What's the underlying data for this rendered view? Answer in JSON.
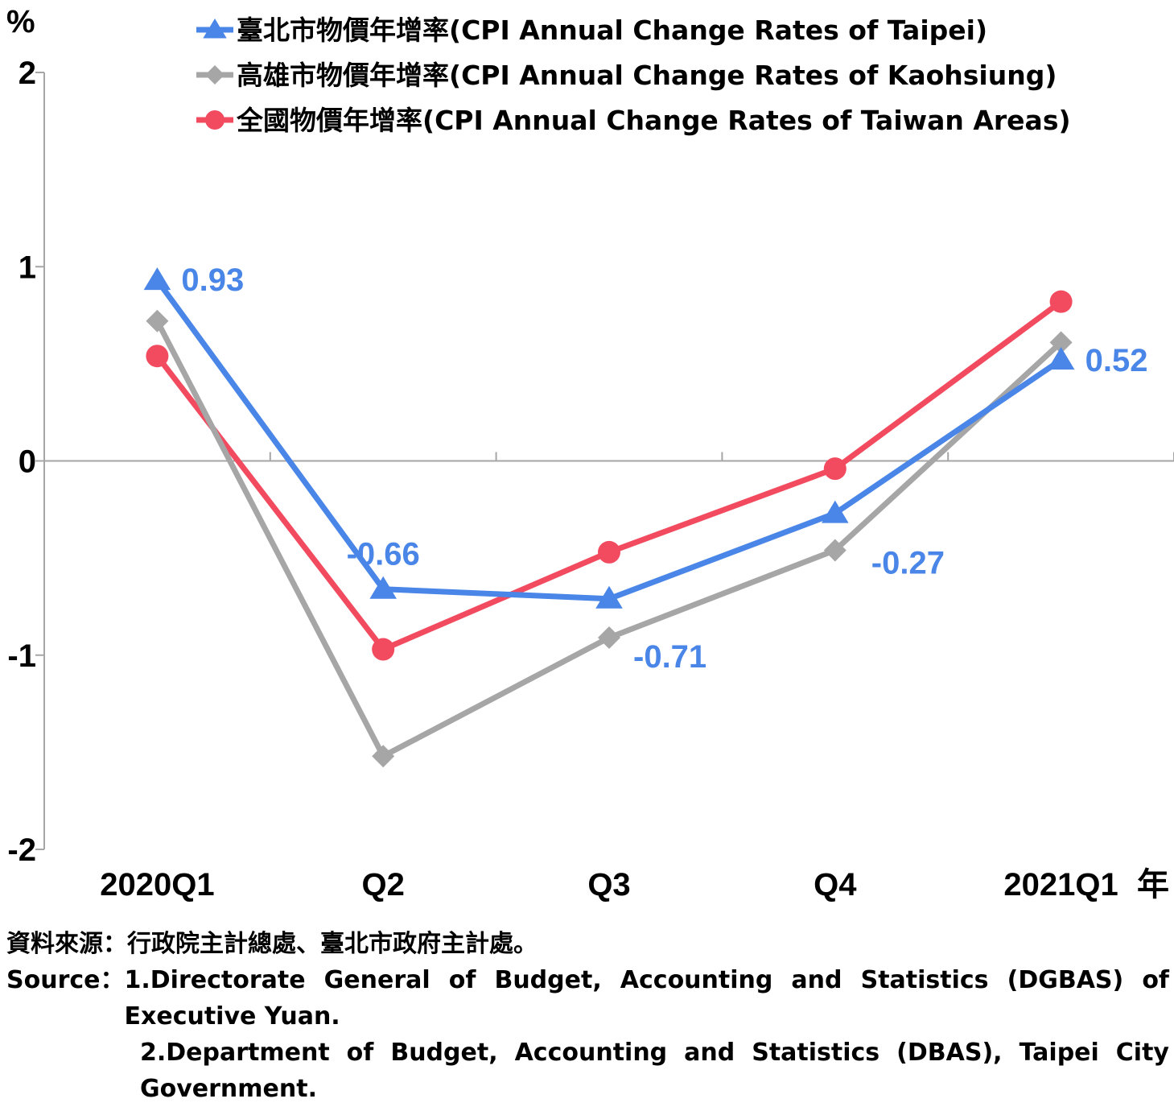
{
  "chart_data": {
    "type": "line",
    "ylabel": "%",
    "ylim": [
      -2,
      2
    ],
    "yticks": [
      2,
      1,
      0,
      -1,
      -2
    ],
    "categories": [
      "2020Q1",
      "Q2",
      "Q3",
      "Q4",
      "2021Q1"
    ],
    "xunit": "年",
    "legend_position": "top-right",
    "series": [
      {
        "name": "臺北市物價年增率(CPI Annual Change Rates of Taipei)",
        "marker": "triangle",
        "color": "#4a86e8",
        "values": [
          0.93,
          -0.66,
          -0.71,
          -0.27,
          0.52
        ],
        "labels": [
          "0.93",
          "-0.66",
          "-0.71",
          "-0.27",
          "0.52"
        ]
      },
      {
        "name": "高雄市物價年增率(CPI Annual Change Rates of Kaohsiung)",
        "marker": "diamond",
        "color": "#a6a6a6",
        "values": [
          0.72,
          -1.52,
          -0.91,
          -0.46,
          0.61
        ]
      },
      {
        "name": "全國物價年增率(CPI Annual Change Rates of Taiwan Areas)",
        "marker": "circle",
        "color": "#f24b5f",
        "values": [
          0.54,
          -0.97,
          -0.47,
          -0.04,
          0.82
        ]
      }
    ]
  },
  "source": {
    "zh_label": "資料來源：",
    "zh_text": "行政院主計總處、臺北市政府主計處。",
    "en_label": "Source：",
    "item1": "1.Directorate General of Budget, Accounting and Statistics (DGBAS) of Executive Yuan.",
    "item2": "2.Department of Budget, Accounting and Statistics (DBAS), Taipei City Government."
  }
}
